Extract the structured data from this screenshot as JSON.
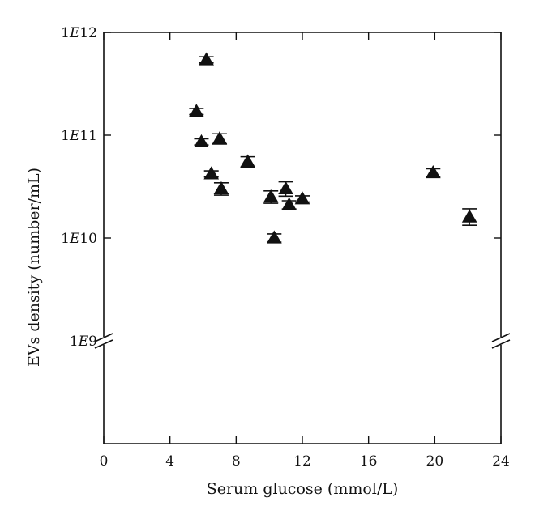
{
  "chart_data": {
    "type": "scatter",
    "title": "",
    "xlabel": "Serum glucose (mmol/L)",
    "ylabel": "EVs density (number/mL)",
    "x_scale": "linear",
    "y_scale": "log",
    "xlim": [
      0,
      24
    ],
    "ylim": [
      100000000,
      1000000000000
    ],
    "x_ticks": [
      0,
      4,
      8,
      12,
      16,
      20,
      24
    ],
    "x_tick_labels": [
      "0",
      "4",
      "8",
      "12",
      "16",
      "20",
      "24"
    ],
    "y_ticks": [
      1000000000,
      10000000000,
      100000000000,
      1000000000000
    ],
    "y_tick_labels": [
      {
        "mantissa": "1",
        "exp_letter": "E",
        "exp": "9"
      },
      {
        "mantissa": "1",
        "exp_letter": "E",
        "exp": "10"
      },
      {
        "mantissa": "1",
        "exp_letter": "E",
        "exp": "11"
      },
      {
        "mantissa": "1",
        "exp_letter": "E",
        "exp": "12"
      }
    ],
    "axis_break": {
      "at": 1000000000,
      "marker": "double-slash"
    },
    "grid": false,
    "marker": "triangle",
    "marker_color": "#111111",
    "points": [
      {
        "x": 6.2,
        "y": 540000000000,
        "err": 0.03
      },
      {
        "x": 5.6,
        "y": 170000000000,
        "err": 0.03
      },
      {
        "x": 5.9,
        "y": 86000000000,
        "err": 0.03
      },
      {
        "x": 7.0,
        "y": 92000000000,
        "err": 0.05
      },
      {
        "x": 6.5,
        "y": 42000000000,
        "err": 0.03
      },
      {
        "x": 8.7,
        "y": 55000000000,
        "err": 0.05
      },
      {
        "x": 7.1,
        "y": 30000000000,
        "err": 0.06
      },
      {
        "x": 10.1,
        "y": 25000000000,
        "err": 0.06
      },
      {
        "x": 11.0,
        "y": 30000000000,
        "err": 0.07
      },
      {
        "x": 11.2,
        "y": 21000000000,
        "err": 0.04
      },
      {
        "x": 12.0,
        "y": 24000000000,
        "err": 0.03
      },
      {
        "x": 10.3,
        "y": 10000000000,
        "err": 0.04
      },
      {
        "x": 19.9,
        "y": 43000000000,
        "err": 0.04
      },
      {
        "x": 22.1,
        "y": 16000000000,
        "err": 0.08
      }
    ]
  }
}
